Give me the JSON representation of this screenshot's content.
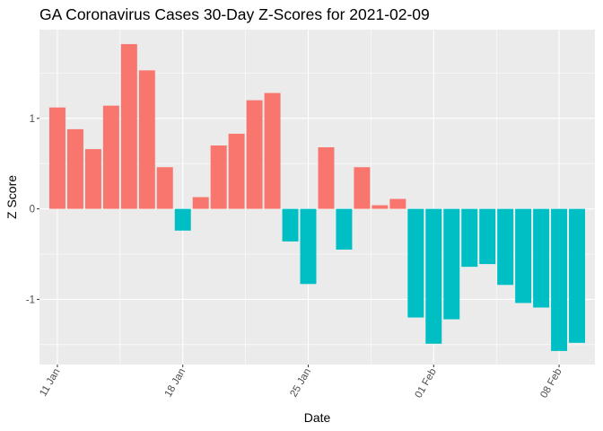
{
  "chart_data": {
    "type": "bar",
    "title": "GA Coronavirus Cases 30-Day Z-Scores for 2021-02-09",
    "xlabel": "Date",
    "ylabel": "Z Score",
    "x_range": [
      "2021-01-10",
      "2021-02-10"
    ],
    "ylim": [
      -1.72,
      1.98
    ],
    "y_ticks": [
      -1,
      0,
      1
    ],
    "y_tick_labels": [
      "-1",
      "0",
      "1"
    ],
    "x_ticks": [
      "2021-01-11",
      "2021-01-18",
      "2021-01-25",
      "2021-02-01",
      "2021-02-08"
    ],
    "x_tick_labels": [
      "11 Jan",
      "18 Jan",
      "25 Jan",
      "01 Feb",
      "08 Feb"
    ],
    "x_tick_rotation_deg": -60,
    "grid": true,
    "legend": "none",
    "colors": {
      "positive": "#F8766D",
      "negative": "#00BFC4",
      "panel_background": "#EBEBEB",
      "grid_major": "#FFFFFF"
    },
    "dates": [
      "2021-01-11",
      "2021-01-12",
      "2021-01-13",
      "2021-01-14",
      "2021-01-15",
      "2021-01-16",
      "2021-01-17",
      "2021-01-18",
      "2021-01-19",
      "2021-01-20",
      "2021-01-21",
      "2021-01-22",
      "2021-01-23",
      "2021-01-24",
      "2021-01-25",
      "2021-01-26",
      "2021-01-27",
      "2021-01-28",
      "2021-01-29",
      "2021-01-30",
      "2021-01-31",
      "2021-02-01",
      "2021-02-02",
      "2021-02-03",
      "2021-02-04",
      "2021-02-05",
      "2021-02-06",
      "2021-02-07",
      "2021-02-08",
      "2021-02-09"
    ],
    "values": [
      1.12,
      0.88,
      0.66,
      1.14,
      1.82,
      1.53,
      0.46,
      -0.24,
      0.13,
      0.7,
      0.83,
      1.2,
      1.28,
      -0.36,
      -0.83,
      0.68,
      -0.45,
      0.46,
      0.04,
      0.11,
      -1.2,
      -1.49,
      -1.22,
      -0.64,
      -0.61,
      -0.84,
      -1.04,
      -1.09,
      -1.57,
      -1.48
    ]
  }
}
